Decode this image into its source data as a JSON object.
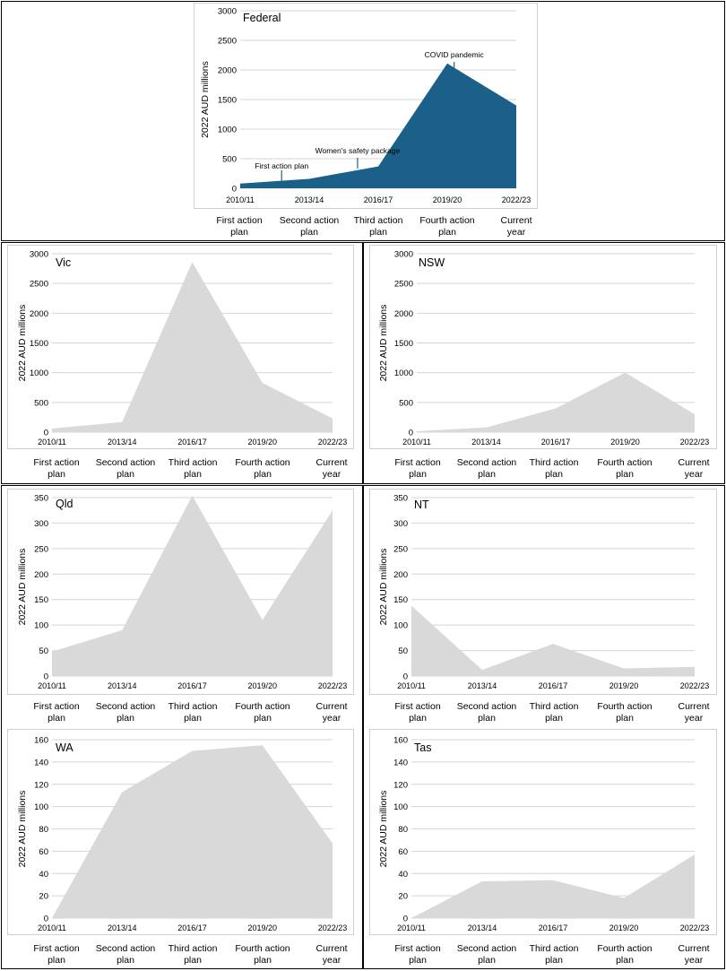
{
  "phases": [
    "First action\nplan",
    "Second action\nplan",
    "Third action\nplan",
    "Fourth action\nplan",
    "Current\nyear"
  ],
  "chart_data": [
    {
      "id": "federal",
      "type": "area",
      "title": "Federal",
      "ylabel": "2022 AUD millions",
      "ylim": [
        0,
        3000
      ],
      "yticks": [
        0,
        500,
        1000,
        1500,
        2000,
        2500,
        3000
      ],
      "x": [
        "2010/11",
        "2013/14",
        "2016/17",
        "2019/20",
        "2022/23"
      ],
      "values": [
        80,
        160,
        370,
        2110,
        1400
      ],
      "color": "#1b6089",
      "grid": true,
      "annotations": [
        {
          "text": "First action plan",
          "x_index": 0.6,
          "value": 80
        },
        {
          "text": "Women's safety package",
          "x_index": 1.7,
          "value": 300
        },
        {
          "text": "COVID pandemic",
          "x_index": 3.1,
          "value": 2100
        }
      ]
    },
    {
      "id": "vic",
      "type": "area",
      "title": "Vic",
      "ylabel": "2022 AUD millions",
      "ylim": [
        0,
        3000
      ],
      "yticks": [
        0,
        500,
        1000,
        1500,
        2000,
        2500,
        3000
      ],
      "x": [
        "2010/11",
        "2013/14",
        "2016/17",
        "2019/20",
        "2022/23"
      ],
      "values": [
        60,
        170,
        2860,
        830,
        230
      ],
      "color": "#d9d9d9",
      "grid": true
    },
    {
      "id": "nsw",
      "type": "area",
      "title": "NSW",
      "ylabel": "2022 AUD millions",
      "ylim": [
        0,
        3000
      ],
      "yticks": [
        0,
        500,
        1000,
        1500,
        2000,
        2500,
        3000
      ],
      "x": [
        "2010/11",
        "2013/14",
        "2016/17",
        "2019/20",
        "2022/23"
      ],
      "values": [
        15,
        80,
        400,
        1000,
        300
      ],
      "color": "#d9d9d9",
      "grid": true
    },
    {
      "id": "qld",
      "type": "area",
      "title": "Qld",
      "ylabel": "2022 AUD millions",
      "ylim": [
        0,
        350
      ],
      "yticks": [
        0,
        50,
        100,
        150,
        200,
        250,
        300,
        350
      ],
      "x": [
        "2010/11",
        "2013/14",
        "2016/17",
        "2019/20",
        "2022/23"
      ],
      "values": [
        48,
        90,
        354,
        110,
        325
      ],
      "color": "#d9d9d9",
      "grid": true
    },
    {
      "id": "nt",
      "type": "area",
      "title": "NT",
      "ylabel": "2022 AUD millions",
      "ylim": [
        0,
        350
      ],
      "yticks": [
        0,
        50,
        100,
        150,
        200,
        250,
        300,
        350
      ],
      "x": [
        "2010/11",
        "2013/14",
        "2016/17",
        "2019/20",
        "2022/23"
      ],
      "values": [
        138,
        12,
        63,
        15,
        18
      ],
      "color": "#d9d9d9",
      "grid": true
    },
    {
      "id": "wa",
      "type": "area",
      "title": "WA",
      "ylabel": "2022 AUD millions",
      "ylim": [
        0,
        160
      ],
      "yticks": [
        0,
        20,
        40,
        60,
        80,
        100,
        120,
        140,
        160
      ],
      "x": [
        "2010/11",
        "2013/14",
        "2016/17",
        "2019/20",
        "2022/23"
      ],
      "values": [
        0,
        113,
        150,
        155,
        67
      ],
      "color": "#d9d9d9",
      "grid": true
    },
    {
      "id": "tas",
      "type": "area",
      "title": "Tas",
      "ylabel": "2022 AUD millions",
      "ylim": [
        0,
        160
      ],
      "yticks": [
        0,
        20,
        40,
        60,
        80,
        100,
        120,
        140,
        160
      ],
      "x": [
        "2010/11",
        "2013/14",
        "2016/17",
        "2019/20",
        "2022/23"
      ],
      "values": [
        0,
        33,
        34,
        18,
        57
      ],
      "color": "#d9d9d9",
      "grid": true
    }
  ]
}
